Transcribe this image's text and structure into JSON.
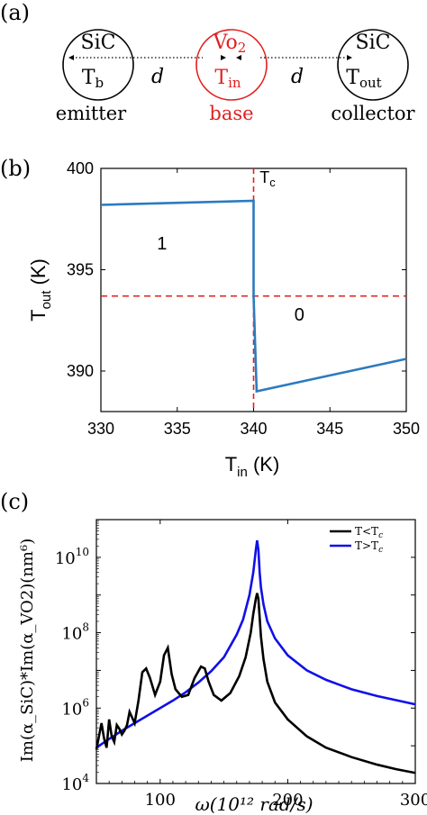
{
  "panel_labels": {
    "a": "(a)",
    "b": "(b)",
    "c": "(c)"
  },
  "colors": {
    "red": "#e02020",
    "blue_b": "#2c7bbf",
    "black": "#000000",
    "blue_c": "#1010e8",
    "dash": "#e02020"
  },
  "schematic": {
    "emitter": {
      "material": "SiC",
      "temp_main": "T",
      "temp_sub": "b",
      "label": "emitter"
    },
    "base": {
      "material_main": "Vo",
      "material_sub": "2",
      "temp_main": "T",
      "temp_sub": "in",
      "label": "base"
    },
    "collector": {
      "material": "SiC",
      "temp_main": "T",
      "temp_sub": "out",
      "label": "collector"
    },
    "gap_label": "d"
  },
  "chart_data": [
    {
      "type": "line",
      "panel": "b",
      "xlabel_main": "T",
      "xlabel_sub": "in",
      "xlabel_unit": " (K)",
      "ylabel_main": "T",
      "ylabel_sub": "out",
      "ylabel_unit": " (K)",
      "xlim": [
        330,
        350
      ],
      "ylim": [
        388,
        400
      ],
      "xticks": [
        330,
        335,
        340,
        345,
        350
      ],
      "yticks": [
        390,
        395,
        400
      ],
      "series": [
        {
          "x": [
            330,
            340,
            340,
            340.2,
            350
          ],
          "y": [
            398.2,
            398.4,
            393.7,
            389.0,
            390.6
          ]
        }
      ],
      "vline_x": 340,
      "hline_y": 393.7,
      "annotations": {
        "tc_main": "T",
        "tc_sub": "c",
        "state1": "1",
        "state0": "0"
      },
      "state1_pos": {
        "x": 334,
        "y": 396.0
      },
      "state0_pos": {
        "x": 343,
        "y": 392.5
      },
      "tc_pos": {
        "x": 340.4,
        "y": 399.3
      }
    },
    {
      "type": "line",
      "panel": "c",
      "xlabel": "ω(10¹² rad/s)",
      "ylabel": "Im(α_SiC)*Im(α_VO2)(nm⁶)",
      "xlim": [
        50,
        300
      ],
      "ylim_log10": [
        4,
        11
      ],
      "log_y": true,
      "xticks": [
        100,
        200,
        300
      ],
      "yticks_exp": [
        4,
        6,
        8,
        10
      ],
      "series": [
        {
          "name": "T<Tc",
          "x": [
            50,
            54,
            56,
            58,
            60,
            62,
            64,
            66,
            68,
            70,
            72,
            74,
            76,
            78,
            80,
            83,
            86,
            89,
            92,
            96,
            100,
            103,
            106,
            109,
            112,
            117,
            122,
            127,
            132,
            135,
            138,
            142,
            148,
            155,
            162,
            167,
            171,
            173,
            175,
            176,
            177,
            178,
            179,
            181,
            184,
            190,
            200,
            215,
            230,
            250,
            270,
            285,
            300
          ],
          "y_log10": [
            4.9,
            5.6,
            5.2,
            4.95,
            5.7,
            5.25,
            5.1,
            5.55,
            5.45,
            5.3,
            5.4,
            5.55,
            5.9,
            5.75,
            5.6,
            6.2,
            6.95,
            7.05,
            6.8,
            6.35,
            6.7,
            7.4,
            7.6,
            6.9,
            6.5,
            6.3,
            6.35,
            6.8,
            7.1,
            7.05,
            6.7,
            6.35,
            6.2,
            6.4,
            6.85,
            7.35,
            8.0,
            8.5,
            8.9,
            9.05,
            8.9,
            8.4,
            7.9,
            7.3,
            6.7,
            6.15,
            5.7,
            5.25,
            4.95,
            4.7,
            4.5,
            4.38,
            4.28
          ]
        },
        {
          "name": "T>Tc",
          "x": [
            50,
            60,
            70,
            80,
            90,
            100,
            110,
            120,
            130,
            140,
            150,
            160,
            165,
            170,
            173,
            175,
            176,
            177,
            178,
            179,
            181,
            184,
            190,
            200,
            215,
            230,
            250,
            270,
            300
          ],
          "y_log10": [
            4.95,
            5.18,
            5.4,
            5.6,
            5.8,
            6.0,
            6.2,
            6.42,
            6.68,
            6.98,
            7.35,
            7.95,
            8.35,
            9.0,
            9.6,
            10.2,
            10.45,
            10.2,
            9.6,
            9.2,
            8.75,
            8.3,
            7.85,
            7.4,
            7.0,
            6.75,
            6.5,
            6.32,
            6.1
          ]
        }
      ],
      "legend": {
        "placement": "top-right",
        "items": [
          "T<T",
          "T>T"
        ],
        "items_sub": [
          "c",
          "c"
        ]
      }
    }
  ]
}
